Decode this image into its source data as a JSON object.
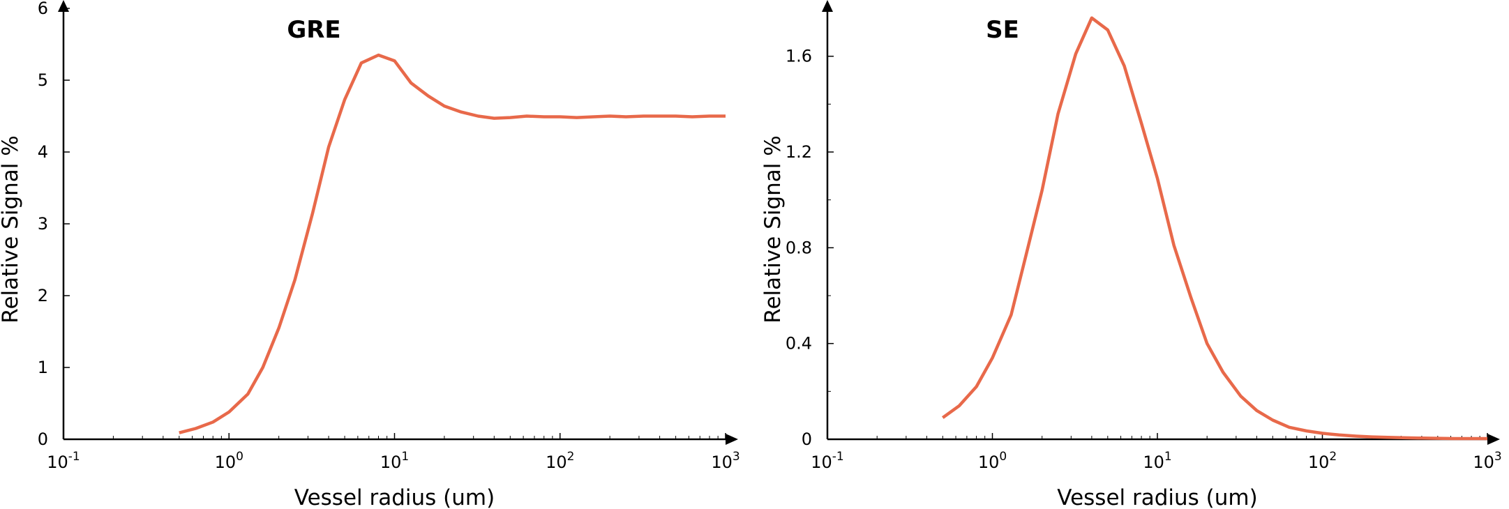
{
  "chart_data": [
    {
      "type": "line",
      "title": "GRE",
      "xlabel": "Vessel radius (um)",
      "ylabel": "Relative Signal %",
      "xscale": "log",
      "xlim": [
        0.1,
        1000
      ],
      "ylim": [
        0,
        6
      ],
      "x_ticks": [
        {
          "base": "10",
          "exp": "-1"
        },
        {
          "base": "10",
          "exp": "0"
        },
        {
          "base": "10",
          "exp": "1"
        },
        {
          "base": "10",
          "exp": "2"
        },
        {
          "base": "10",
          "exp": "3"
        }
      ],
      "y_ticks": [
        "0",
        "1",
        "2",
        "3",
        "4",
        "5",
        "6"
      ],
      "grid": false,
      "color": "#E8694A",
      "series": [
        {
          "x": [
            0.5,
            0.63,
            0.8,
            1.0,
            1.3,
            1.6,
            2.0,
            2.5,
            3.2,
            4.0,
            5.0,
            6.3,
            8.0,
            10.0,
            12.6,
            16.0,
            20.0,
            25.0,
            32.0,
            40.0,
            50.0,
            63.0,
            80.0,
            100.0,
            126.0,
            160.0,
            200.0,
            250.0,
            320.0,
            400.0,
            500.0,
            630.0,
            800.0,
            1000.0
          ],
          "y": [
            0.09,
            0.15,
            0.24,
            0.38,
            0.63,
            1.0,
            1.55,
            2.22,
            3.15,
            4.07,
            4.73,
            5.24,
            5.35,
            5.27,
            4.96,
            4.78,
            4.64,
            4.56,
            4.5,
            4.47,
            4.48,
            4.5,
            4.49,
            4.49,
            4.48,
            4.49,
            4.5,
            4.49,
            4.5,
            4.5,
            4.5,
            4.49,
            4.5,
            4.5
          ]
        }
      ]
    },
    {
      "type": "line",
      "title": "SE",
      "xlabel": "Vessel radius (um)",
      "ylabel": "Relative Signal %",
      "xscale": "log",
      "xlim": [
        0.1,
        1000
      ],
      "ylim": [
        0,
        1.8
      ],
      "x_ticks": [
        {
          "base": "10",
          "exp": "-1"
        },
        {
          "base": "10",
          "exp": "0"
        },
        {
          "base": "10",
          "exp": "1"
        },
        {
          "base": "10",
          "exp": "2"
        },
        {
          "base": "10",
          "exp": "3"
        }
      ],
      "y_ticks": [
        "0",
        "0.4",
        "0.8",
        "1.2",
        "1.6"
      ],
      "y_minor_ticks": [
        0.2,
        0.6,
        1.0,
        1.4
      ],
      "grid": false,
      "color": "#E8694A",
      "series": [
        {
          "x": [
            0.5,
            0.63,
            0.8,
            1.0,
            1.3,
            1.6,
            2.0,
            2.5,
            3.2,
            4.0,
            5.0,
            6.3,
            8.0,
            10.0,
            12.6,
            16.0,
            20.0,
            25.0,
            32.0,
            40.0,
            50.0,
            63.0,
            80.0,
            100.0,
            126.0,
            160.0,
            200.0,
            250.0,
            320.0,
            400.0,
            500.0,
            630.0,
            800.0,
            1000.0
          ],
          "y": [
            0.09,
            0.14,
            0.22,
            0.34,
            0.52,
            0.77,
            1.04,
            1.36,
            1.61,
            1.76,
            1.71,
            1.56,
            1.32,
            1.09,
            0.81,
            0.59,
            0.4,
            0.28,
            0.18,
            0.12,
            0.08,
            0.05,
            0.035,
            0.025,
            0.018,
            0.013,
            0.01,
            0.008,
            0.006,
            0.005,
            0.004,
            0.003,
            0.003,
            0.003
          ]
        }
      ]
    }
  ]
}
